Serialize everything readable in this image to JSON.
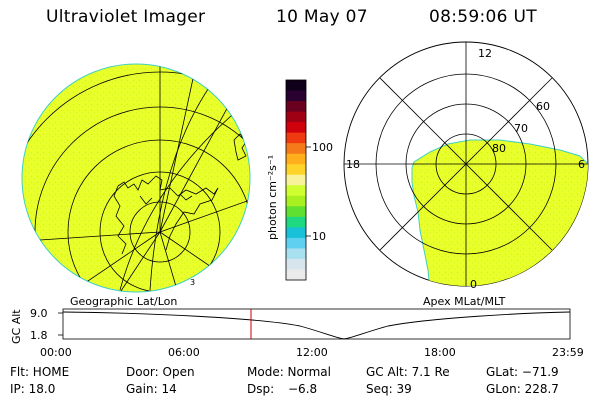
{
  "header": {
    "title": "Ultraviolet Imager",
    "date": "10 May 07",
    "time": "08:59:06 UT"
  },
  "left_panel": {
    "label": "Geographic Lat/Lon",
    "fill_color": "#e8ff2a"
  },
  "colorbar": {
    "unit_label": "photon cm⁻²s⁻¹",
    "ticks": [
      "100",
      "10"
    ],
    "colors": [
      "#10001a",
      "#2a0030",
      "#6a0020",
      "#a00014",
      "#d0000c",
      "#ef3a10",
      "#f57a1a",
      "#ffae1c",
      "#ffd42a",
      "#f8f29a",
      "#d0ff30",
      "#a8f020",
      "#60e030",
      "#20d880",
      "#18c0d8",
      "#60d0f0",
      "#a8e0f0",
      "#d6e6ec",
      "#ebebeb"
    ]
  },
  "right_panel": {
    "label": "Apex MLat/MLT",
    "mlt_labels": {
      "top": "12",
      "left": "18",
      "right": "6",
      "bottom": "0"
    },
    "mlat_labels": [
      "60",
      "70",
      "80"
    ]
  },
  "altitude_plot": {
    "ylabel": "GC Alt",
    "yticks": [
      "9.0",
      "1.8"
    ],
    "xticks": [
      "00:00",
      "06:00",
      "12:00",
      "18:00",
      "23:59"
    ],
    "marker_color": "#cc0000"
  },
  "footer": {
    "flt": "Flt: HOME",
    "ip": "IP: 18.0",
    "door": "Door: Open",
    "gain": "Gain: 14",
    "mode": "Mode: Normal",
    "dsp_label": "Dsp:",
    "dsp_value": "−6.8",
    "gc_alt": "GC Alt: 7.1 Re",
    "seq": "Seq: 39",
    "glat": "GLat: −71.9",
    "glon": "GLon: 228.7"
  }
}
